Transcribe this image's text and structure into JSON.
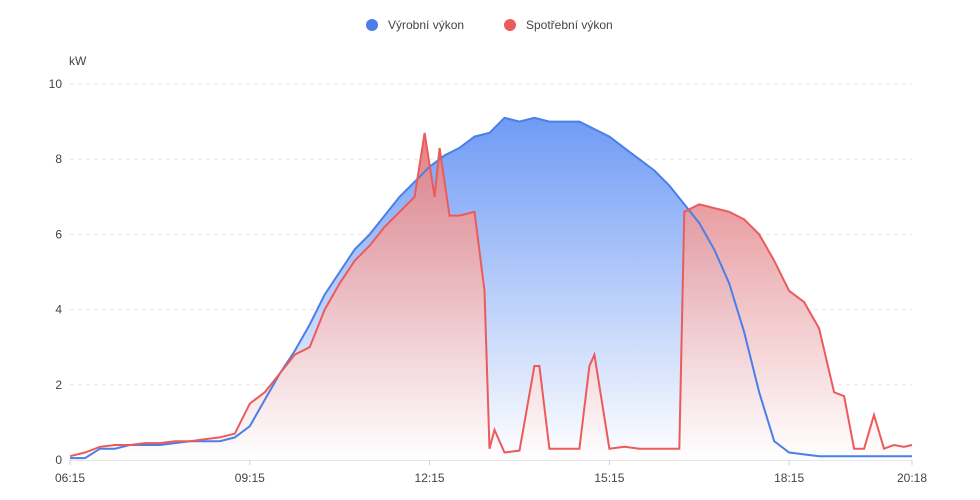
{
  "chart_data": {
    "type": "area",
    "ylabel": "kW",
    "ylim": [
      0,
      10
    ],
    "yticks": [
      "0",
      "2",
      "4",
      "6",
      "8",
      "10"
    ],
    "xlim": [
      "06:15",
      "20:18"
    ],
    "xticks": [
      "06:15",
      "09:15",
      "12:15",
      "15:15",
      "18:15",
      "20:18"
    ],
    "legend_position": "top-center",
    "grid": true,
    "series": [
      {
        "name": "Výrobní výkon",
        "color": "#4a7fe8",
        "x": [
          "06:15",
          "06:30",
          "06:45",
          "07:00",
          "07:15",
          "07:30",
          "07:45",
          "08:00",
          "08:15",
          "08:30",
          "08:45",
          "09:00",
          "09:15",
          "09:30",
          "09:45",
          "10:00",
          "10:15",
          "10:30",
          "10:45",
          "11:00",
          "11:15",
          "11:30",
          "11:45",
          "12:00",
          "12:15",
          "12:30",
          "12:45",
          "13:00",
          "13:15",
          "13:30",
          "13:45",
          "14:00",
          "14:15",
          "14:30",
          "14:45",
          "15:00",
          "15:15",
          "15:30",
          "15:45",
          "16:00",
          "16:15",
          "16:30",
          "16:45",
          "17:00",
          "17:15",
          "17:30",
          "17:45",
          "18:00",
          "18:15",
          "18:30",
          "18:45",
          "19:00",
          "19:15",
          "19:30",
          "19:45",
          "20:00",
          "20:10",
          "20:18"
        ],
        "values": [
          0.05,
          0.05,
          0.3,
          0.3,
          0.4,
          0.4,
          0.4,
          0.45,
          0.5,
          0.5,
          0.5,
          0.6,
          0.9,
          1.6,
          2.3,
          2.9,
          3.6,
          4.4,
          5.0,
          5.6,
          6.0,
          6.5,
          7.0,
          7.4,
          7.8,
          8.1,
          8.3,
          8.6,
          8.7,
          9.1,
          9.0,
          9.1,
          9.0,
          9.0,
          9.0,
          8.8,
          8.6,
          8.3,
          8.0,
          7.7,
          7.3,
          6.8,
          6.3,
          5.6,
          4.7,
          3.4,
          1.8,
          0.5,
          0.2,
          0.15,
          0.1,
          0.1,
          0.1,
          0.1,
          0.1,
          0.1,
          0.1,
          0.1
        ]
      },
      {
        "name": "Spotřební výkon",
        "color": "#ec5b5b",
        "x": [
          "06:15",
          "06:30",
          "06:45",
          "07:00",
          "07:15",
          "07:30",
          "07:45",
          "08:00",
          "08:15",
          "08:30",
          "08:45",
          "09:00",
          "09:15",
          "09:30",
          "09:45",
          "10:00",
          "10:15",
          "10:30",
          "10:45",
          "11:00",
          "11:15",
          "11:30",
          "11:45",
          "12:00",
          "12:10",
          "12:20",
          "12:25",
          "12:35",
          "12:45",
          "13:00",
          "13:10",
          "13:15",
          "13:20",
          "13:30",
          "13:45",
          "14:00",
          "14:05",
          "14:15",
          "14:30",
          "14:45",
          "14:55",
          "15:00",
          "15:15",
          "15:30",
          "15:45",
          "16:00",
          "16:15",
          "16:25",
          "16:30",
          "16:45",
          "17:00",
          "17:15",
          "17:30",
          "17:45",
          "18:00",
          "18:15",
          "18:30",
          "18:45",
          "19:00",
          "19:10",
          "19:20",
          "19:30",
          "19:40",
          "19:50",
          "20:00",
          "20:10",
          "20:18"
        ],
        "values": [
          0.1,
          0.2,
          0.35,
          0.4,
          0.4,
          0.45,
          0.45,
          0.5,
          0.5,
          0.55,
          0.6,
          0.7,
          1.5,
          1.8,
          2.3,
          2.8,
          3.0,
          4.0,
          4.7,
          5.3,
          5.7,
          6.2,
          6.6,
          7.0,
          8.7,
          7.0,
          8.3,
          6.5,
          6.5,
          6.6,
          4.5,
          0.3,
          0.8,
          0.2,
          0.25,
          2.5,
          2.5,
          0.3,
          0.3,
          0.3,
          2.5,
          2.8,
          0.3,
          0.35,
          0.3,
          0.3,
          0.3,
          0.3,
          6.6,
          6.8,
          6.7,
          6.6,
          6.4,
          6.0,
          5.3,
          4.5,
          4.2,
          3.5,
          1.8,
          1.7,
          0.3,
          0.3,
          1.2,
          0.3,
          0.4,
          0.35,
          0.4
        ]
      }
    ]
  }
}
